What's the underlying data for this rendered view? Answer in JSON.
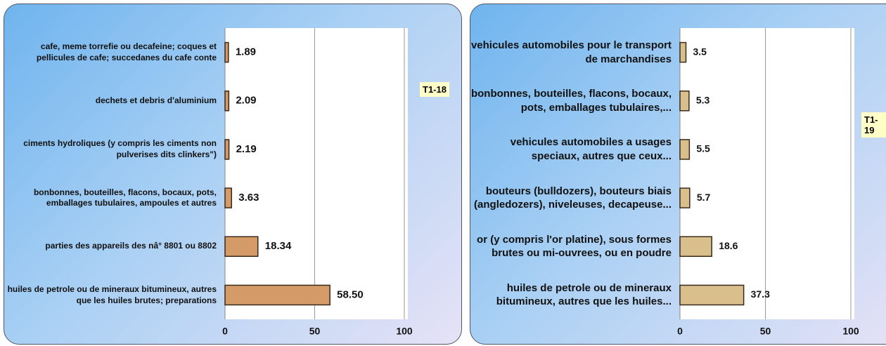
{
  "chart_data": [
    {
      "type": "bar",
      "orientation": "horizontal",
      "annotation": "T1-18",
      "categories": [
        "cafe, meme torrefie ou decafeine; coques et pellicules de cafe; succedanes du cafe conte",
        "dechets et debris d'aluminium",
        "ciments hydroliques (y compris les ciments non pulverises dits clinkers\")",
        "bonbonnes, bouteilles, flacons, bocaux, pots, emballages tubulaires, ampoules et autres",
        "parties des appareils des nâ° 8801 ou 8802",
        "huiles de petrole ou de mineraux bitumineux, autres que les huiles brutes; preparations"
      ],
      "values": [
        1.89,
        2.09,
        2.19,
        3.63,
        18.34,
        58.5
      ],
      "value_labels": [
        "1.89",
        "2.09",
        "2.19",
        "3.63",
        "18.34",
        "58.50"
      ],
      "color": "#d49a68",
      "xlim": [
        0,
        100
      ],
      "xticks": [
        0,
        50,
        100
      ],
      "grid": true
    },
    {
      "type": "bar",
      "orientation": "horizontal",
      "annotation": "T1-19",
      "categories": [
        "vehicules automobiles pour le transport de marchandises",
        "bonbonnes, bouteilles, flacons, bocaux, pots, emballages tubulaires,...",
        "vehicules automobiles a usages speciaux, autres que ceux...",
        "bouteurs (bulldozers), bouteurs biais (angledozers), niveleuses, decapeuse...",
        "or (y compris l'or platine), sous formes brutes ou mi-ouvrees, ou en poudre",
        "huiles de petrole ou de mineraux bitumineux, autres que les huiles..."
      ],
      "values": [
        3.5,
        5.3,
        5.5,
        5.7,
        18.6,
        37.3
      ],
      "color": "#d9bf8c",
      "xlim": [
        0,
        100
      ],
      "xticks": [
        0,
        50,
        100
      ],
      "grid": true
    }
  ]
}
